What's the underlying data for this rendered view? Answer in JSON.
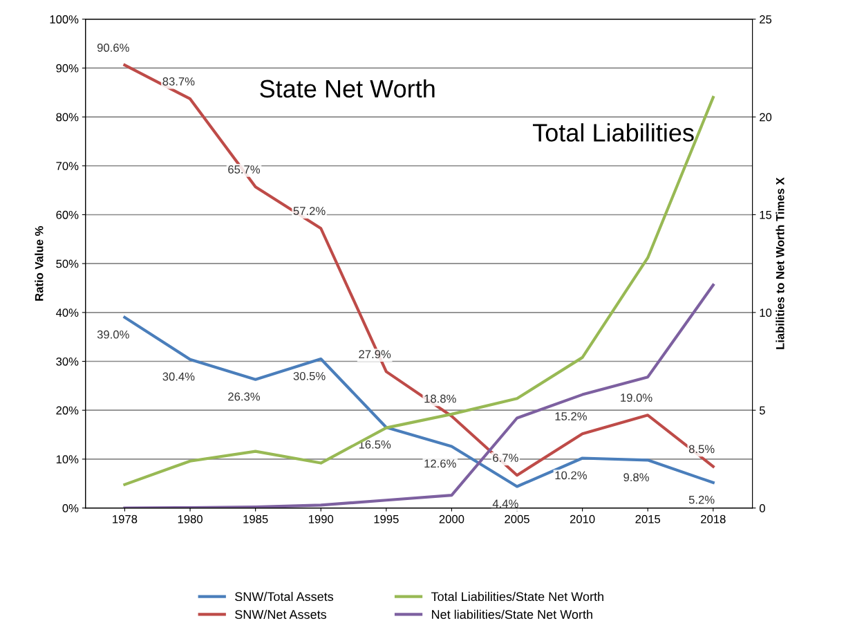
{
  "chart_data": {
    "type": "line",
    "ylabel": "Ratio Value %",
    "y2label": "Liabilities to Net Worth Times X",
    "categories": [
      "1978",
      "1980",
      "1985",
      "1990",
      "1995",
      "2000",
      "2005",
      "2010",
      "2015",
      "2018"
    ],
    "series": [
      {
        "name": "SNW/Total Assets",
        "color": "#4a7ebb",
        "values": [
          39.0,
          30.4,
          26.3,
          30.5,
          16.5,
          12.6,
          4.4,
          10.2,
          9.8,
          5.2
        ],
        "value_labels": [
          "39.0%",
          "30.4%",
          "26.3%",
          "30.5%",
          "16.5%",
          "12.6%",
          "4.4%",
          "10.2%",
          "9.8%",
          "5.2%"
        ]
      },
      {
        "name": "SNW/Net Assets",
        "color": "#be4b48",
        "values": [
          90.6,
          83.7,
          65.7,
          57.2,
          27.9,
          18.8,
          6.7,
          15.2,
          19.0,
          8.5
        ],
        "value_labels": [
          "90.6%",
          "83.7%",
          "65.7%",
          "57.2%",
          "27.9%",
          "18.8%",
          "6.7%",
          "15.2%",
          "19.0%",
          "8.5%"
        ]
      },
      {
        "name": "Total Liabilities/State Net Worth",
        "color": "#98b954",
        "axis": "y2",
        "values": [
          1.2,
          2.4,
          2.9,
          2.3,
          4.1,
          4.8,
          5.6,
          7.7,
          12.8,
          21.0
        ]
      },
      {
        "name": "Net liabilities/State Net Worth",
        "color": "#7d60a0",
        "axis": "y2",
        "values": [
          0.0,
          0.02,
          0.05,
          0.15,
          0.4,
          0.65,
          4.6,
          5.8,
          6.7,
          11.4
        ]
      }
    ],
    "ylim": [
      0,
      100
    ],
    "yticks": [
      {
        "value": 0,
        "label": "0%"
      },
      {
        "value": 10,
        "label": "10%"
      },
      {
        "value": 20,
        "label": "20%"
      },
      {
        "value": 30,
        "label": "30%"
      },
      {
        "value": 40,
        "label": "40%"
      },
      {
        "value": 50,
        "label": "50%"
      },
      {
        "value": 60,
        "label": "60%"
      },
      {
        "value": 70,
        "label": "70%"
      },
      {
        "value": 80,
        "label": "80%"
      },
      {
        "value": 90,
        "label": "90%"
      },
      {
        "value": 100,
        "label": "100%"
      }
    ],
    "y2lim": [
      0,
      25
    ],
    "y2ticks": [
      0,
      5,
      10,
      15,
      20,
      25
    ],
    "annotations": [
      "State Net Worth",
      "Total Liabilities"
    ],
    "grid": "y",
    "legend": "bottom",
    "marker": "none",
    "line_style": "solid"
  }
}
